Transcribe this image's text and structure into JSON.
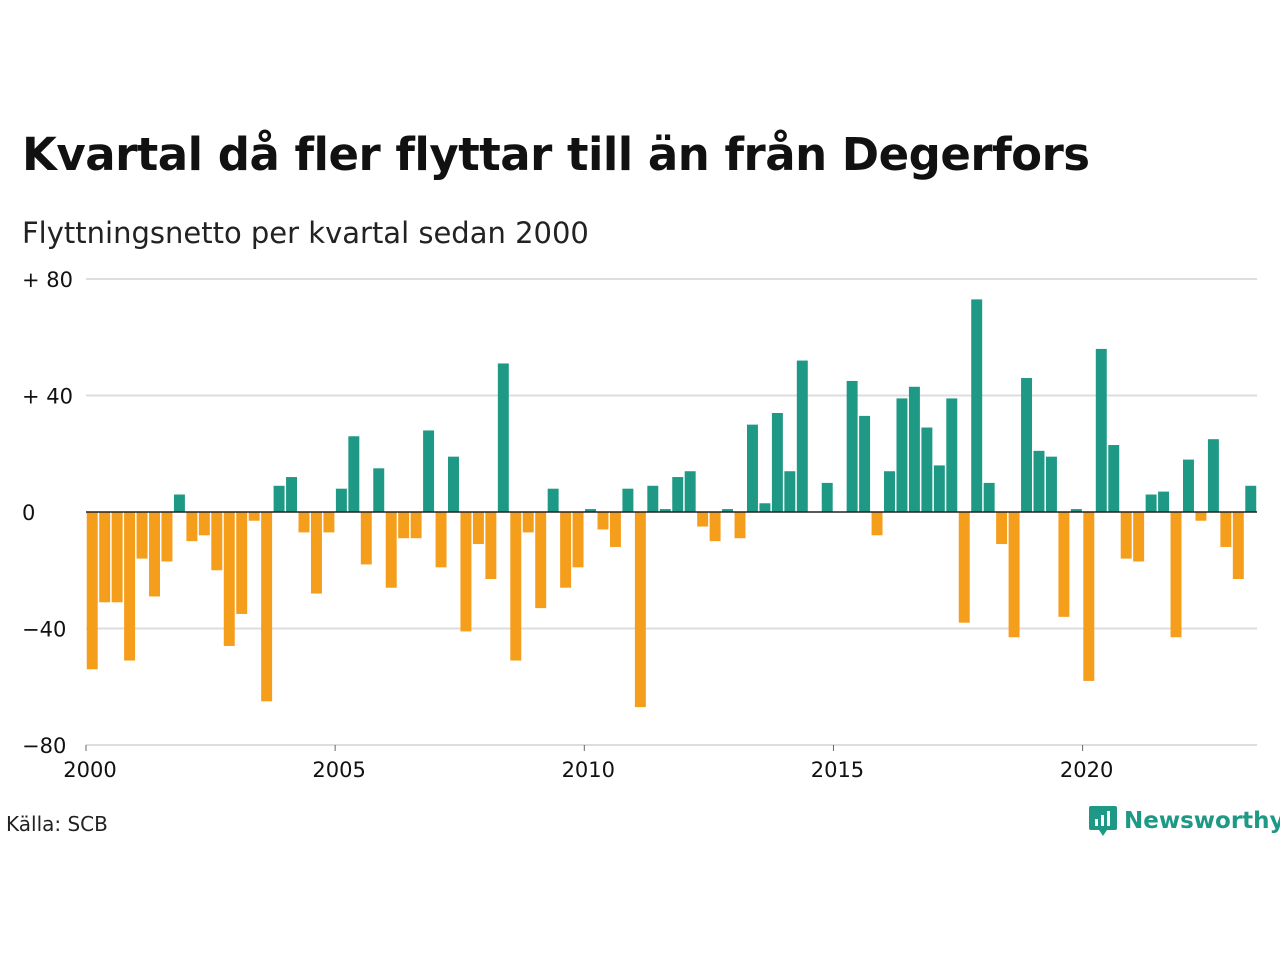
{
  "title": "Kvartal då fler flyttar till än från Degerfors",
  "subtitle": "Flyttningsnetto per kvartal sedan 2000",
  "source": "Källa: SCB",
  "brand": "Newsworthy",
  "colors": {
    "positive": "#1e9985",
    "negative": "#f59e1c",
    "grid": "#dddddd",
    "zero_line": "#222222",
    "brand": "#1e9985"
  },
  "icons": {
    "logo": "chart-bubble-icon"
  },
  "chart_data": {
    "type": "bar",
    "title": "Kvartal då fler flyttar till än från Degerfors",
    "subtitle": "Flyttningsnetto per kvartal sedan 2000",
    "xlabel": "",
    "ylabel": "",
    "ylim": [
      -80,
      80
    ],
    "x_range": [
      2000,
      2023.5
    ],
    "grid": true,
    "yticks": [
      {
        "value": 80,
        "label": "+ 80"
      },
      {
        "value": 40,
        "label": "+ 40"
      },
      {
        "value": 0,
        "label": "0"
      },
      {
        "value": -40,
        "label": "−40"
      },
      {
        "value": -80,
        "label": "−80"
      }
    ],
    "xticks": [
      {
        "value": 2000,
        "label": "2000"
      },
      {
        "value": 2005,
        "label": "2005"
      },
      {
        "value": 2010,
        "label": "2010"
      },
      {
        "value": 2015,
        "label": "2015"
      },
      {
        "value": 2020,
        "label": "2020"
      }
    ],
    "categories": [
      "2000 K1",
      "2000 K2",
      "2000 K3",
      "2000 K4",
      "2001 K1",
      "2001 K2",
      "2001 K3",
      "2001 K4",
      "2002 K1",
      "2002 K2",
      "2002 K3",
      "2002 K4",
      "2003 K1",
      "2003 K2",
      "2003 K3",
      "2003 K4",
      "2004 K1",
      "2004 K2",
      "2004 K3",
      "2004 K4",
      "2005 K1",
      "2005 K2",
      "2005 K3",
      "2005 K4",
      "2006 K1",
      "2006 K2",
      "2006 K3",
      "2006 K4",
      "2007 K1",
      "2007 K2",
      "2007 K3",
      "2007 K4",
      "2008 K1",
      "2008 K2",
      "2008 K3",
      "2008 K4",
      "2009 K1",
      "2009 K2",
      "2009 K3",
      "2009 K4",
      "2010 K1",
      "2010 K2",
      "2010 K3",
      "2010 K4",
      "2011 K1",
      "2011 K2",
      "2011 K3",
      "2011 K4",
      "2012 K1",
      "2012 K2",
      "2012 K3",
      "2012 K4",
      "2013 K1",
      "2013 K2",
      "2013 K3",
      "2013 K4",
      "2014 K1",
      "2014 K2",
      "2014 K3",
      "2014 K4",
      "2015 K1",
      "2015 K2",
      "2015 K3",
      "2015 K4",
      "2016 K1",
      "2016 K2",
      "2016 K3",
      "2016 K4",
      "2017 K1",
      "2017 K2",
      "2017 K3",
      "2017 K4",
      "2018 K1",
      "2018 K2",
      "2018 K3",
      "2018 K4",
      "2019 K1",
      "2019 K2",
      "2019 K3",
      "2019 K4",
      "2020 K1",
      "2020 K2",
      "2020 K3",
      "2020 K4",
      "2021 K1",
      "2021 K2",
      "2021 K3",
      "2021 K4",
      "2022 K1",
      "2022 K2",
      "2022 K3",
      "2022 K4",
      "2023 K1",
      "2023 K2"
    ],
    "values": [
      -54,
      -31,
      -31,
      -51,
      -16,
      -29,
      -17,
      6,
      -10,
      -8,
      -20,
      -46,
      -35,
      -3,
      -65,
      9,
      12,
      -7,
      -28,
      -7,
      8,
      26,
      -18,
      15,
      -26,
      -9,
      -9,
      28,
      -19,
      19,
      -41,
      -11,
      -23,
      51,
      -51,
      -7,
      -33,
      8,
      -26,
      -19,
      1,
      -6,
      -12,
      8,
      -67,
      9,
      1,
      12,
      14,
      -5,
      -10,
      1,
      -9,
      30,
      3,
      34,
      14,
      52,
      0,
      10,
      0,
      45,
      33,
      -8,
      14,
      39,
      43,
      29,
      16,
      39,
      -38,
      73,
      10,
      -11,
      -43,
      46,
      21,
      19,
      -36,
      1,
      -58,
      56,
      23,
      -16,
      -17,
      6,
      7,
      -43,
      18,
      -3,
      25,
      -12,
      -23,
      9
    ]
  }
}
